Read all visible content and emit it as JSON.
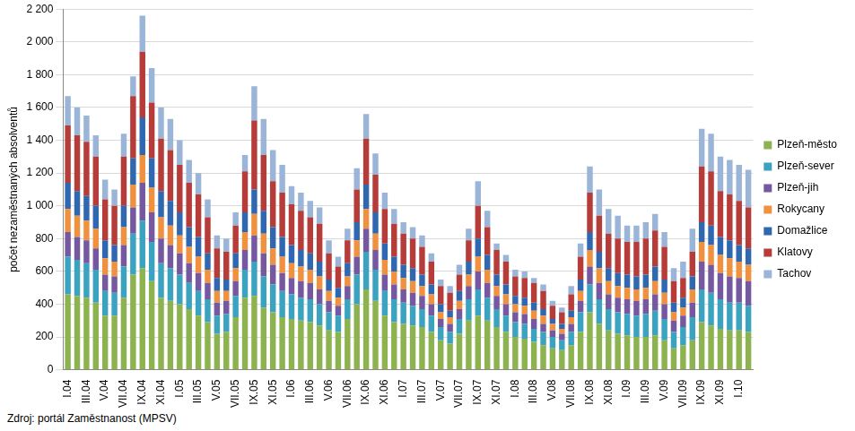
{
  "chart_data": {
    "type": "bar",
    "stacked": true,
    "grid": true,
    "legend": "right",
    "y_label": "počet nezaměstnaných absolventů",
    "source": "Zdroj: portál Zaměstnanost (MPSV)",
    "ylim": [
      0,
      2200
    ],
    "yticks": [
      0,
      200,
      400,
      600,
      800,
      {
        "value": 1000,
        "label": "1 000"
      },
      {
        "value": 1200,
        "label": "1 200"
      },
      {
        "value": 1400,
        "label": "1 400"
      },
      {
        "value": 1600,
        "label": "1 600"
      },
      {
        "value": 1800,
        "label": "1 800"
      },
      {
        "value": 2000,
        "label": "2 000"
      },
      {
        "value": 2200,
        "label": "2 200"
      }
    ],
    "categories": [
      "I.04",
      null,
      "III.04",
      null,
      "V.04",
      null,
      "VII.04",
      null,
      "IX.04",
      null,
      "XI.04",
      null,
      "I.05",
      null,
      "III.05",
      null,
      "V.05",
      null,
      "VII.05",
      null,
      "IX.05",
      null,
      "XI.05",
      null,
      "I.06",
      null,
      "III.06",
      null,
      "V.06",
      null,
      "VII.06",
      null,
      "IX.06",
      null,
      "XI.06",
      null,
      "I.07",
      null,
      "III.07",
      null,
      "V.07",
      null,
      "VII.07",
      null,
      "IX.07",
      null,
      "XI.07",
      null,
      "I.08",
      null,
      "III.08",
      null,
      "V.08",
      null,
      "VII.08",
      null,
      "IX.08",
      null,
      "XI.08",
      null,
      "I.09",
      null,
      "III.09",
      null,
      "V.09",
      null,
      "VII.09",
      null,
      "IX.09",
      null,
      "XI.09",
      null,
      "I.10",
      null
    ],
    "series": [
      {
        "name": "Plzeň-město",
        "color": "#8db350",
        "values": [
          460,
          450,
          440,
          410,
          330,
          330,
          440,
          580,
          620,
          540,
          440,
          420,
          400,
          370,
          330,
          290,
          220,
          230,
          320,
          440,
          450,
          380,
          350,
          320,
          310,
          300,
          290,
          270,
          240,
          230,
          310,
          400,
          490,
          420,
          330,
          290,
          280,
          270,
          260,
          230,
          180,
          160,
          220,
          300,
          330,
          300,
          260,
          230,
          200,
          190,
          170,
          150,
          130,
          120,
          150,
          230,
          350,
          280,
          240,
          220,
          210,
          200,
          200,
          210,
          180,
          130,
          150,
          180,
          290,
          270,
          250,
          240,
          240,
          230
        ]
      },
      {
        "name": "Plzeň-sever",
        "color": "#3ba3bf",
        "values": [
          230,
          220,
          210,
          200,
          150,
          140,
          190,
          250,
          290,
          240,
          210,
          200,
          180,
          160,
          150,
          140,
          110,
          110,
          130,
          170,
          210,
          190,
          170,
          160,
          150,
          140,
          140,
          130,
          110,
          100,
          120,
          180,
          230,
          190,
          150,
          140,
          130,
          120,
          110,
          100,
          80,
          70,
          90,
          130,
          160,
          140,
          110,
          100,
          90,
          90,
          80,
          80,
          70,
          60,
          80,
          120,
          170,
          150,
          130,
          130,
          130,
          130,
          140,
          150,
          130,
          100,
          110,
          140,
          200,
          200,
          180,
          170,
          170,
          160
        ]
      },
      {
        "name": "Plzeň-jih",
        "color": "#7558a0",
        "values": [
          150,
          140,
          140,
          130,
          100,
          100,
          130,
          160,
          230,
          180,
          150,
          140,
          130,
          120,
          110,
          100,
          80,
          80,
          90,
          120,
          160,
          140,
          120,
          110,
          100,
          100,
          100,
          90,
          70,
          60,
          80,
          110,
          140,
          120,
          100,
          90,
          80,
          80,
          80,
          70,
          50,
          50,
          60,
          80,
          110,
          90,
          80,
          70,
          60,
          60,
          60,
          50,
          40,
          40,
          50,
          70,
          110,
          100,
          90,
          90,
          90,
          90,
          90,
          100,
          90,
          70,
          70,
          90,
          170,
          170,
          160,
          160,
          150,
          150
        ]
      },
      {
        "name": "Rokycany",
        "color": "#f0913f",
        "values": [
          140,
          130,
          120,
          120,
          100,
          90,
          110,
          140,
          170,
          150,
          130,
          120,
          110,
          100,
          100,
          80,
          70,
          60,
          80,
          110,
          130,
          120,
          100,
          100,
          90,
          90,
          80,
          80,
          60,
          50,
          60,
          100,
          120,
          100,
          90,
          80,
          70,
          70,
          60,
          60,
          40,
          40,
          50,
          70,
          90,
          80,
          60,
          60,
          50,
          50,
          50,
          50,
          40,
          30,
          40,
          60,
          100,
          90,
          80,
          70,
          70,
          70,
          70,
          80,
          70,
          50,
          50,
          80,
          120,
          120,
          110,
          110,
          100,
          100
        ]
      },
      {
        "name": "Domažlice",
        "color": "#2f68b0",
        "values": [
          160,
          150,
          150,
          140,
          110,
          100,
          130,
          160,
          230,
          180,
          160,
          150,
          140,
          120,
          120,
          100,
          80,
          70,
          90,
          120,
          150,
          140,
          130,
          120,
          110,
          100,
          100,
          90,
          70,
          60,
          80,
          110,
          150,
          130,
          100,
          90,
          80,
          80,
          70,
          60,
          50,
          40,
          60,
          80,
          110,
          90,
          70,
          60,
          50,
          50,
          50,
          40,
          30,
          30,
          40,
          70,
          110,
          100,
          80,
          80,
          80,
          80,
          80,
          90,
          80,
          60,
          60,
          80,
          120,
          120,
          110,
          110,
          100,
          100
        ]
      },
      {
        "name": "Klatovy",
        "color": "#b63c39",
        "values": [
          350,
          340,
          330,
          300,
          250,
          240,
          300,
          380,
          400,
          340,
          320,
          310,
          290,
          270,
          260,
          220,
          180,
          170,
          170,
          250,
          420,
          340,
          280,
          270,
          250,
          240,
          220,
          230,
          160,
          130,
          140,
          200,
          280,
          230,
          210,
          200,
          190,
          180,
          170,
          140,
          110,
          110,
          100,
          130,
          200,
          170,
          150,
          140,
          120,
          120,
          120,
          110,
          80,
          70,
          100,
          140,
          240,
          220,
          210,
          210,
          200,
          210,
          220,
          220,
          200,
          130,
          120,
          150,
          340,
          330,
          280,
          280,
          270,
          250
        ]
      },
      {
        "name": "Tachov",
        "color": "#9bb5d9",
        "values": [
          180,
          170,
          160,
          130,
          120,
          100,
          140,
          120,
          220,
          210,
          190,
          190,
          150,
          140,
          130,
          110,
          80,
          80,
          80,
          100,
          210,
          220,
          190,
          170,
          110,
          110,
          100,
          100,
          80,
          60,
          70,
          130,
          150,
          130,
          100,
          90,
          70,
          70,
          70,
          50,
          40,
          40,
          60,
          70,
          150,
          100,
          40,
          40,
          40,
          40,
          30,
          40,
          30,
          30,
          50,
          80,
          160,
          160,
          150,
          140,
          100,
          100,
          100,
          100,
          90,
          80,
          100,
          140,
          230,
          230,
          210,
          210,
          220,
          230
        ]
      }
    ]
  }
}
